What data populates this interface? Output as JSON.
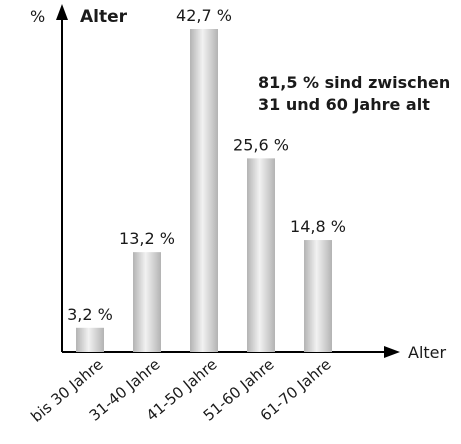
{
  "chart_data": {
    "type": "bar",
    "title": "Alter",
    "ylabel": "%",
    "xlabel": "Alter",
    "categories": [
      "bis 30 Jahre",
      "31-40 Jahre",
      "41-50 Jahre",
      "51-60 Jahre",
      "61-70 Jahre"
    ],
    "values": [
      3.2,
      13.2,
      42.7,
      25.6,
      14.8
    ],
    "value_labels": [
      "3,2 %",
      "13,2 %",
      "42,7 %",
      "25,6 %",
      "14,8 %"
    ],
    "ylim": [
      0,
      42.7
    ],
    "grid": false,
    "annotation": [
      "81,5 % sind zwischen",
      "31 und 60 Jahre alt"
    ],
    "colors": {
      "bar_light": "#f2f2f2",
      "bar_dark": "#b3b3b3",
      "axis": "#000000"
    }
  }
}
